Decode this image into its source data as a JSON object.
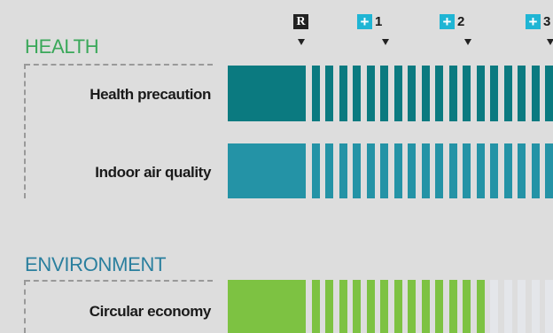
{
  "markers": [
    {
      "kind": "ref",
      "box": "R",
      "num": ""
    },
    {
      "kind": "plus",
      "box": "+",
      "num": "1"
    },
    {
      "kind": "plus",
      "box": "+",
      "num": "2"
    },
    {
      "kind": "plus",
      "box": "+",
      "num": "3"
    }
  ],
  "sections": [
    {
      "title": "HEALTH",
      "title_color": "#3aa85a",
      "rows": [
        {
          "label": "Health precaution",
          "block_color": "#0b7a80",
          "stripe_color": "#0b7a80",
          "empty_color": "#0b7a80"
        },
        {
          "label": "Indoor air quality",
          "block_color": "#2493a6",
          "stripe_color": "#2493a6",
          "empty_color": "#2493a6"
        }
      ]
    },
    {
      "title": "ENVIRONMENT",
      "title_color": "#2a7f9e",
      "rows": [
        {
          "label": "Circular economy",
          "block_color": "#7dc242",
          "stripe_color": "#7dc242",
          "empty_color": "#e4e6ea"
        }
      ]
    }
  ]
}
